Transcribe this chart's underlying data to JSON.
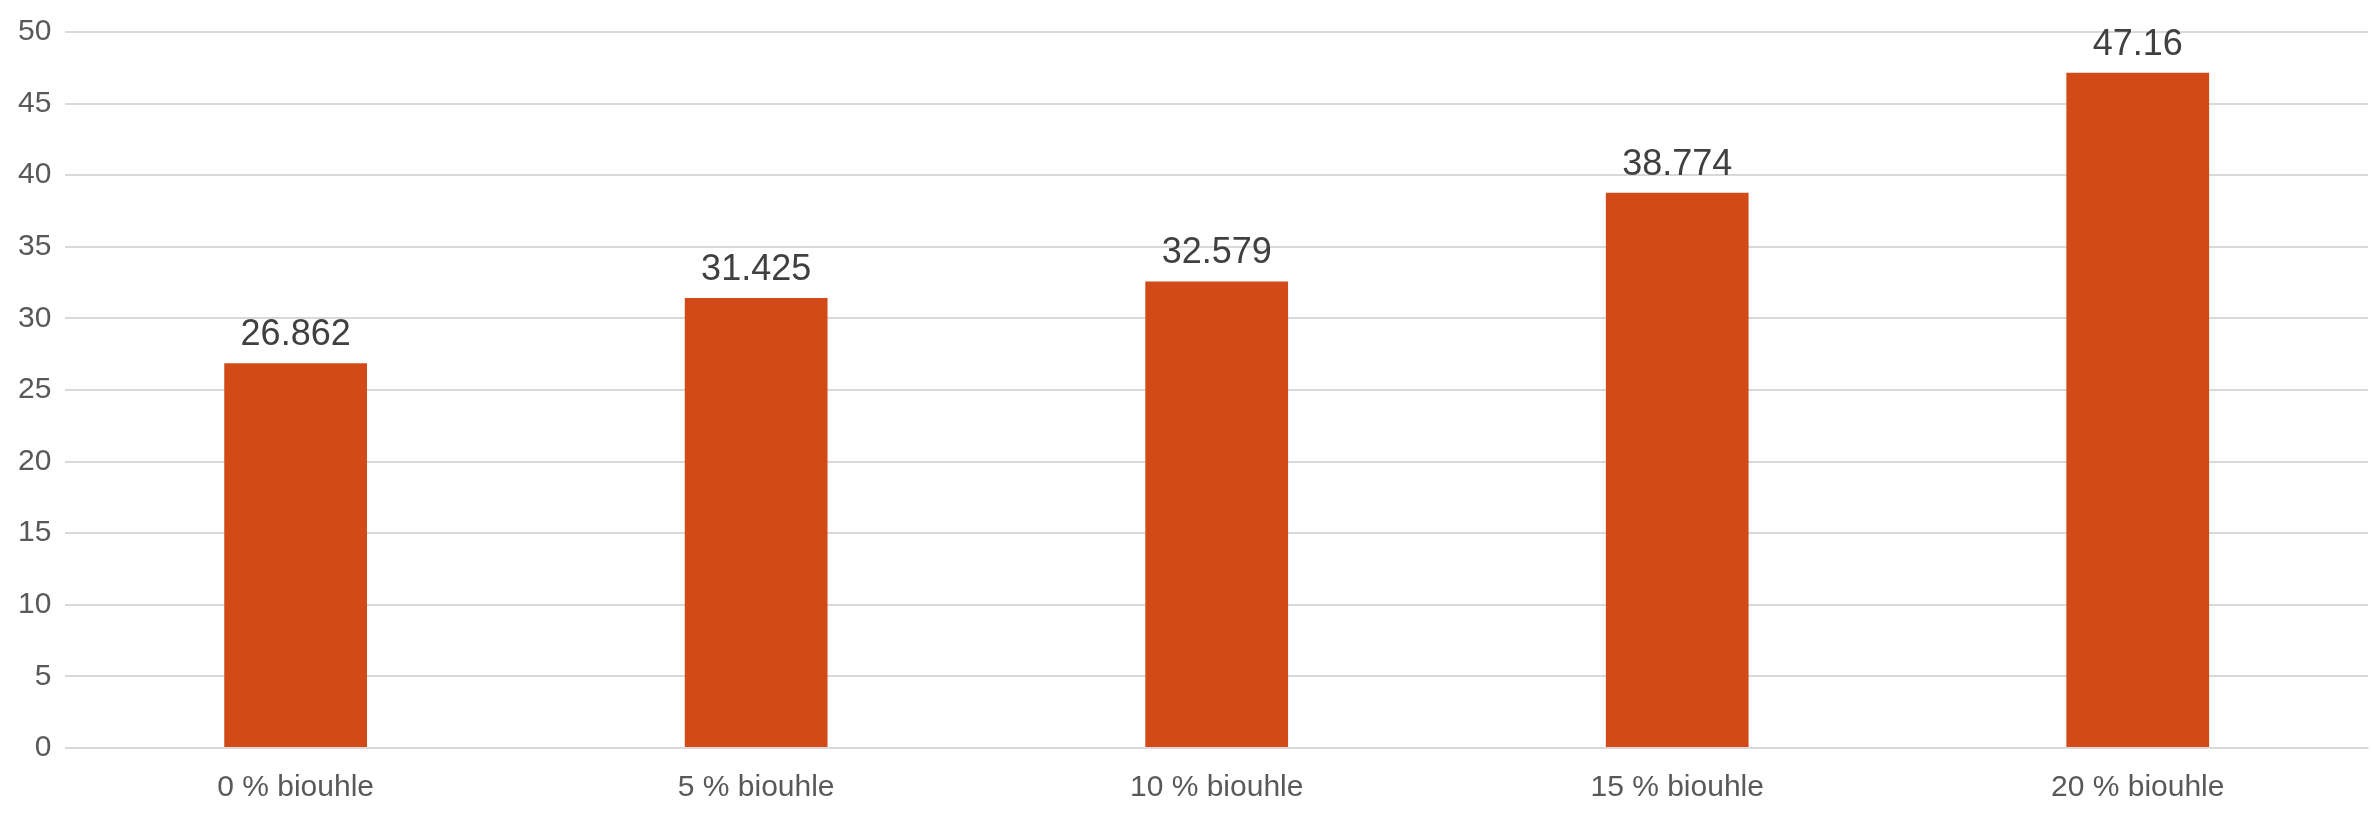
{
  "chart_data": {
    "type": "bar",
    "categories": [
      "0 % biouhle",
      "5 % biouhle",
      "10 % biouhle",
      "15 % biouhle",
      "20 % biouhle"
    ],
    "values": [
      26.862,
      31.425,
      32.579,
      38.774,
      47.16
    ],
    "color": "#d24a17",
    "ylim": [
      0,
      50
    ],
    "yticks": [
      0,
      5,
      10,
      15,
      20,
      25,
      30,
      35,
      40,
      45,
      50
    ],
    "grid": "y",
    "data_labels": true,
    "legend": false
  }
}
